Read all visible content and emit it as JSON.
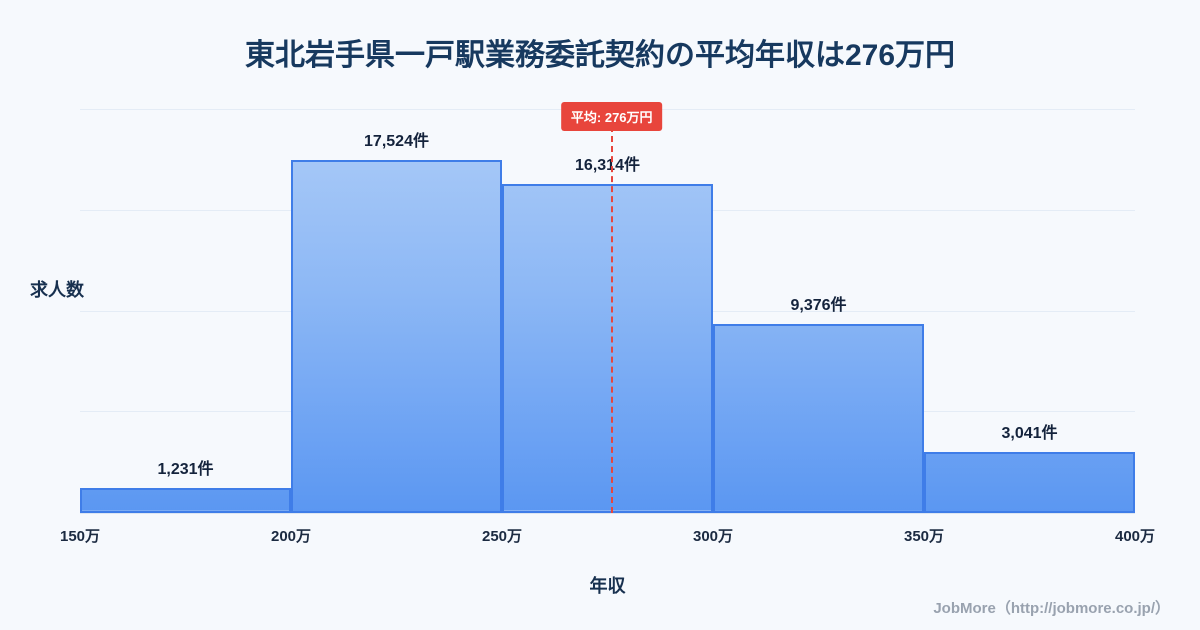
{
  "chart_data": {
    "type": "bar",
    "subtype": "histogram",
    "title": "東北岩手県一戸駅業務委託契約の平均年収は276万円",
    "xlabel": "年収",
    "ylabel": "求人数",
    "x_range": [
      150,
      400
    ],
    "ylim": [
      0,
      20000
    ],
    "grid": "horizontal",
    "legend": "none",
    "bin_edge_labels": [
      "150万",
      "200万",
      "250万",
      "300万",
      "350万",
      "400万"
    ],
    "bins": [
      {
        "range": "150万-200万",
        "value": 1231,
        "label": "1,231件"
      },
      {
        "range": "200万-250万",
        "value": 17524,
        "label": "17,524件"
      },
      {
        "range": "250万-300万",
        "value": 16314,
        "label": "16,314件"
      },
      {
        "range": "300万-350万",
        "value": 9376,
        "label": "9,376件"
      },
      {
        "range": "350万-400万",
        "value": 3041,
        "label": "3,041件"
      }
    ],
    "average_line": {
      "x": 276,
      "label": "平均: 276万円",
      "style": "dashed",
      "color": "#e8453c"
    },
    "colors": {
      "background": "#f6f9fd",
      "bar_fill_top": "#aecdf8",
      "bar_fill_bottom": "#5b97f2",
      "bar_border": "#3f7de8",
      "title_text": "#17395f",
      "axis_text": "#1b2a41",
      "value_label_text": "#14233c",
      "grid": "#e4ecf6",
      "average": "#e8453c",
      "footer_text": "#99a2af"
    }
  },
  "footer": {
    "credit": "JobMore（http://jobmore.co.jp/）"
  }
}
